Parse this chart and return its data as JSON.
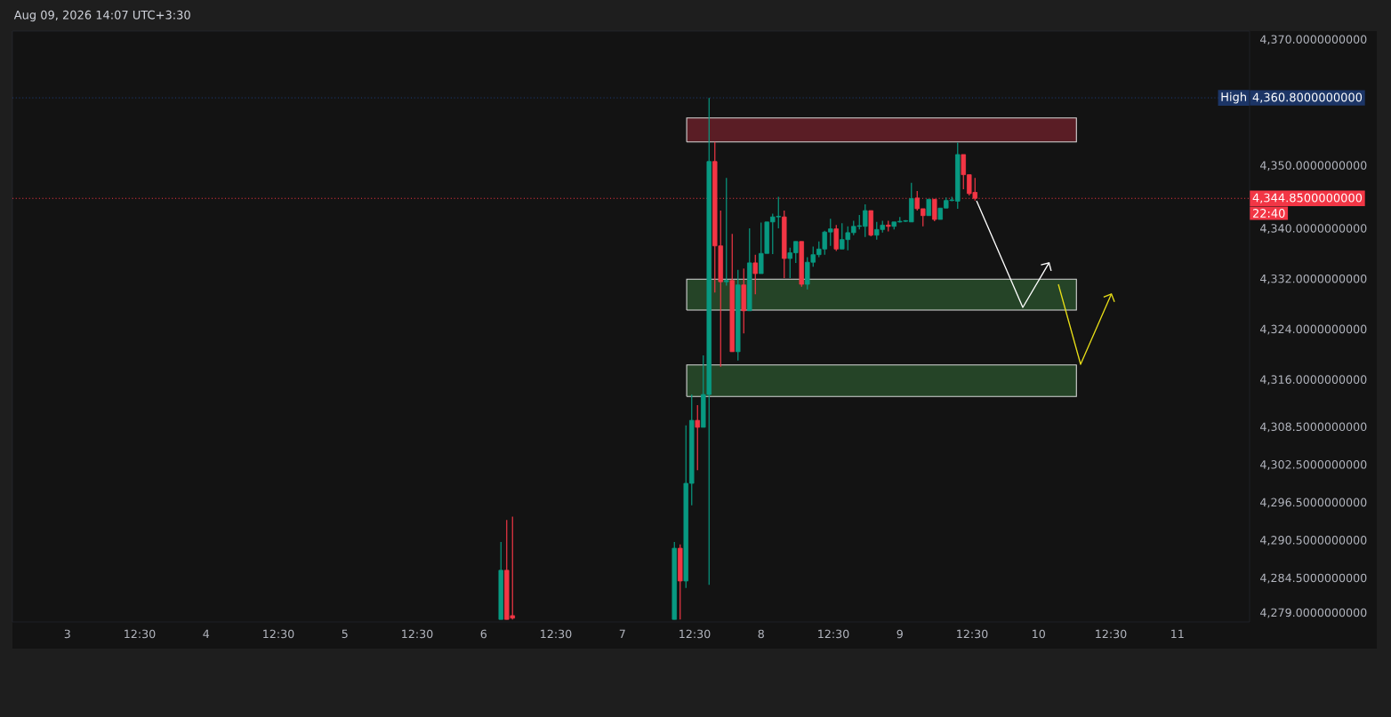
{
  "chart_data": {
    "type": "candlestick",
    "title": "Aug 09, 2026 14:07 UTC+3:30",
    "x": [
      "2026-08-06T03:00",
      "2026-08-06T04:00",
      "2026-08-06T05:00",
      "2026-08-07T09:00",
      "2026-08-07T10:00",
      "2026-08-07T11:00",
      "2026-08-07T12:00",
      "2026-08-07T13:00",
      "2026-08-07T14:00",
      "2026-08-07T15:00",
      "2026-08-07T16:00",
      "2026-08-07T17:00",
      "2026-08-07T18:00",
      "2026-08-07T19:00",
      "2026-08-07T20:00",
      "2026-08-07T21:00",
      "2026-08-07T22:00",
      "2026-08-07T23:00",
      "2026-08-08T00:00",
      "2026-08-08T01:00",
      "2026-08-08T02:00",
      "2026-08-08T03:00",
      "2026-08-08T04:00",
      "2026-08-08T05:00",
      "2026-08-08T06:00",
      "2026-08-08T07:00",
      "2026-08-08T08:00",
      "2026-08-08T09:00",
      "2026-08-08T10:00",
      "2026-08-08T11:00",
      "2026-08-08T12:00",
      "2026-08-08T13:00",
      "2026-08-08T14:00",
      "2026-08-08T15:00",
      "2026-08-08T16:00",
      "2026-08-08T17:00",
      "2026-08-08T18:00",
      "2026-08-08T19:00",
      "2026-08-08T20:00",
      "2026-08-08T21:00",
      "2026-08-08T22:00",
      "2026-08-08T23:00",
      "2026-08-09T00:00",
      "2026-08-09T01:00",
      "2026-08-09T02:00",
      "2026-08-09T03:00",
      "2026-08-09T04:00",
      "2026-08-09T05:00",
      "2026-08-09T06:00",
      "2026-08-09T07:00",
      "2026-08-09T08:00",
      "2026-08-09T09:00",
      "2026-08-09T10:00",
      "2026-08-09T11:00",
      "2026-08-09T12:00",
      "2026-08-09T13:00"
    ],
    "ohlc": [
      [
        4278,
        4290.3,
        4278,
        4285.8
      ],
      [
        4285.8,
        4293.8,
        4278,
        4278
      ],
      [
        4278.6,
        4294.3,
        4278,
        4278.2
      ],
      [
        4278,
        4290.3,
        4278,
        4289.3
      ],
      [
        4289.3,
        4289.9,
        4278,
        4284.1
      ],
      [
        4284.1,
        4308.8,
        4283.0,
        4299.6
      ],
      [
        4299.6,
        4313.7,
        4296.1,
        4309.6
      ],
      [
        4309.6,
        4312.0,
        4301.7,
        4308.5
      ],
      [
        4308.5,
        4319.9,
        4308.5,
        4313.7
      ],
      [
        4313.7,
        4360.8,
        4283.5,
        4350.7
      ],
      [
        4350.7,
        4353.8,
        4329.9,
        4337.3
      ],
      [
        4337.3,
        4342.9,
        4318.1,
        4331.6
      ],
      [
        4331.6,
        4348.1,
        4331.0,
        4331.8
      ],
      [
        4331.8,
        4339.2,
        4320.5,
        4320.5
      ],
      [
        4320.5,
        4333.5,
        4319.1,
        4331.1
      ],
      [
        4331.1,
        4333.7,
        4323.4,
        4327.0
      ],
      [
        4327.0,
        4340.1,
        4327.0,
        4334.6
      ],
      [
        4334.6,
        4335.9,
        4329.6,
        4332.9
      ],
      [
        4332.9,
        4341.0,
        4332.9,
        4336.1
      ],
      [
        4336.1,
        4341.1,
        4336.1,
        4341.1
      ],
      [
        4341.1,
        4342.4,
        4336.0,
        4341.9
      ],
      [
        4341.9,
        4345.1,
        4340.1,
        4342.0
      ],
      [
        4341.9,
        4342.9,
        4332.2,
        4335.3
      ],
      [
        4335.3,
        4337.0,
        4332.2,
        4336.2
      ],
      [
        4336.2,
        4338.0,
        4334.6,
        4338.0
      ],
      [
        4338.0,
        4338.0,
        4330.8,
        4331.2
      ],
      [
        4331.2,
        4335.5,
        4330.4,
        4334.7
      ],
      [
        4334.7,
        4337.2,
        4334.0,
        4335.9
      ],
      [
        4335.9,
        4338.0,
        4335.5,
        4336.8
      ],
      [
        4336.8,
        4339.7,
        4335.9,
        4339.5
      ],
      [
        4339.5,
        4341.6,
        4337.3,
        4340.0
      ],
      [
        4340.0,
        4340.6,
        4336.5,
        4336.8
      ],
      [
        4336.8,
        4340.9,
        4336.8,
        4338.3
      ],
      [
        4338.3,
        4340.4,
        4336.6,
        4339.4
      ],
      [
        4339.4,
        4341.3,
        4339.0,
        4340.4
      ],
      [
        4340.4,
        4342.2,
        4339.9,
        4340.5
      ],
      [
        4340.4,
        4343.9,
        4338.7,
        4342.9
      ],
      [
        4342.9,
        4342.9,
        4338.8,
        4339.0
      ],
      [
        4339.0,
        4341.1,
        4338.3,
        4339.9
      ],
      [
        4339.9,
        4341.3,
        4339.4,
        4340.6
      ],
      [
        4340.6,
        4341.3,
        4339.6,
        4340.4
      ],
      [
        4340.4,
        4341.1,
        4339.9,
        4341.1
      ],
      [
        4341.1,
        4341.9,
        4341.0,
        4341.2
      ],
      [
        4341.2,
        4341.4,
        4341.1,
        4341.3
      ],
      [
        4341.1,
        4347.3,
        4341.1,
        4344.8
      ],
      [
        4344.9,
        4346.0,
        4342.9,
        4343.2
      ],
      [
        4343.2,
        4343.2,
        4340.4,
        4342.1
      ],
      [
        4342.1,
        4344.7,
        4342.1,
        4344.7
      ],
      [
        4344.7,
        4344.7,
        4341.2,
        4341.5
      ],
      [
        4341.5,
        4343.3,
        4341.5,
        4343.3
      ],
      [
        4343.3,
        4345.0,
        4343.3,
        4344.5
      ],
      [
        4344.5,
        4345.1,
        4344.4,
        4344.6
      ],
      [
        4344.4,
        4353.7,
        4343.2,
        4351.8
      ],
      [
        4351.8,
        4351.8,
        4346.3,
        4348.6
      ],
      [
        4348.6,
        4348.6,
        4345.3,
        4345.6
      ],
      [
        4345.8,
        4348.1,
        4344.5,
        4344.85
      ]
    ],
    "xlim": [
      "2026-08-02T14:30",
      "2026-08-11T12:30"
    ],
    "ylim": [
      4277.6,
      4371.4
    ],
    "xticks": [
      {
        "value": "2026-08-03",
        "label": "3"
      },
      {
        "value": "2026-08-03T12:30",
        "label": "12:30"
      },
      {
        "value": "2026-08-04",
        "label": "4"
      },
      {
        "value": "2026-08-04T12:30",
        "label": "12:30"
      },
      {
        "value": "2026-08-05",
        "label": "5"
      },
      {
        "value": "2026-08-05T12:30",
        "label": "12:30"
      },
      {
        "value": "2026-08-06",
        "label": "6"
      },
      {
        "value": "2026-08-06T12:30",
        "label": "12:30"
      },
      {
        "value": "2026-08-07",
        "label": "7"
      },
      {
        "value": "2026-08-07T12:30",
        "label": "12:30"
      },
      {
        "value": "2026-08-08",
        "label": "8"
      },
      {
        "value": "2026-08-08T12:30",
        "label": "12:30"
      },
      {
        "value": "2026-08-09",
        "label": "9"
      },
      {
        "value": "2026-08-09T12:30",
        "label": "12:30"
      },
      {
        "value": "2026-08-10",
        "label": "10"
      },
      {
        "value": "2026-08-10T12:30",
        "label": "12:30"
      },
      {
        "value": "2026-08-11",
        "label": "11"
      }
    ],
    "yticks": [
      {
        "value": 4370,
        "label": "4,370.0000000000"
      },
      {
        "value": 4350,
        "label": "4,350.0000000000"
      },
      {
        "value": 4340,
        "label": "4,340.0000000000"
      },
      {
        "value": 4332,
        "label": "4,332.0000000000"
      },
      {
        "value": 4324,
        "label": "4,324.0000000000"
      },
      {
        "value": 4316,
        "label": "4,316.0000000000"
      },
      {
        "value": 4308.5,
        "label": "4,308.5000000000"
      },
      {
        "value": 4302.5,
        "label": "4,302.5000000000"
      },
      {
        "value": 4296.5,
        "label": "4,296.5000000000"
      },
      {
        "value": 4290.5,
        "label": "4,290.5000000000"
      },
      {
        "value": 4284.5,
        "label": "4,284.5000000000"
      },
      {
        "value": 4279,
        "label": "4,279.0000000000"
      }
    ],
    "ref_lines": [
      {
        "axis": "y",
        "value": 4360.8,
        "label": "4,360.8000000000",
        "color": "#1c3566",
        "line_style": "dotted"
      },
      {
        "axis": "y",
        "value": 4344.85,
        "label": "4,344.8500000000",
        "color": "#f23645",
        "line_style": "dotted"
      }
    ],
    "bands": [
      {
        "axis": "y",
        "from": 4353.8,
        "to": 4357.6,
        "color": "#5a1d25"
      },
      {
        "axis": "y",
        "from": 4327.1,
        "to": 4332.0,
        "color": "#254427"
      },
      {
        "axis": "y",
        "from": 4313.4,
        "to": 4318.4,
        "color": "#254427"
      }
    ],
    "annotations": [
      {
        "text": "High",
        "y": 4360.8
      },
      "22:40"
    ]
  }
}
